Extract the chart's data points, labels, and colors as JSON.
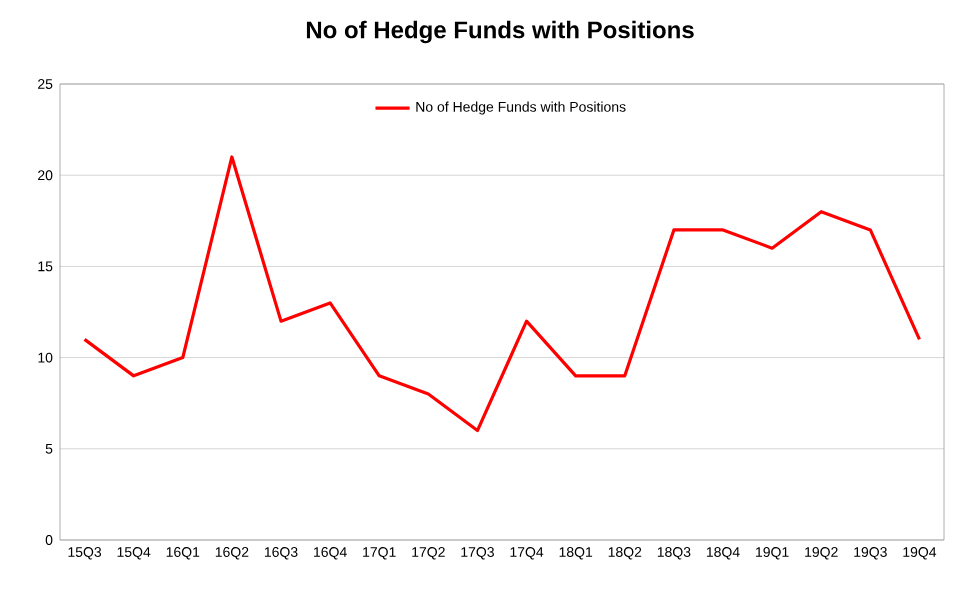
{
  "chart_data": {
    "type": "line",
    "title": "No of Hedge Funds with Positions",
    "categories": [
      "15Q3",
      "15Q4",
      "16Q1",
      "16Q2",
      "16Q3",
      "16Q4",
      "17Q1",
      "17Q2",
      "17Q3",
      "17Q4",
      "18Q1",
      "18Q2",
      "18Q3",
      "18Q4",
      "19Q1",
      "19Q2",
      "19Q3",
      "19Q4"
    ],
    "series": [
      {
        "name": "No of Hedge Funds with Positions",
        "color": "#ff0000",
        "values": [
          11,
          9,
          10,
          21,
          12,
          13,
          9,
          8,
          6,
          12,
          9,
          9,
          17,
          17,
          16,
          18,
          17,
          11
        ]
      }
    ],
    "ylim": [
      0,
      25
    ],
    "yticks": [
      0,
      5,
      10,
      15,
      20,
      25
    ],
    "grid": "y",
    "legend": "top",
    "marker": "none",
    "line_style": "solid"
  }
}
